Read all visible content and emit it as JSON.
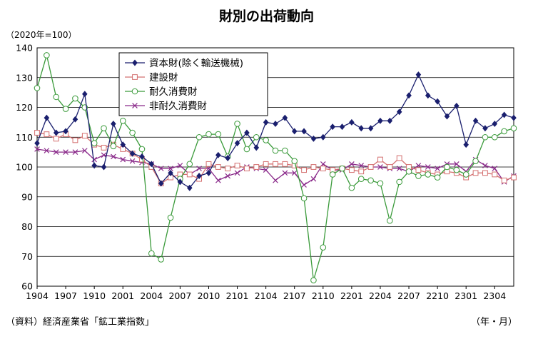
{
  "title": "財別の出荷動向",
  "unit_label": "（2020年=100）",
  "source": "（資料）経済産業省「鉱工業指数」",
  "x_unit": "（年・月）",
  "chart_data": {
    "type": "line",
    "title": "財別の出荷動向",
    "ylabel": "（2020年=100）",
    "xlabel": "（年・月）",
    "ylim": [
      60,
      140
    ],
    "yticks": [
      60,
      70,
      80,
      90,
      100,
      110,
      120,
      130,
      140
    ],
    "xticks": [
      "1904",
      "1907",
      "1910",
      "2001",
      "2004",
      "2007",
      "2010",
      "2101",
      "2104",
      "2107",
      "2110",
      "2201",
      "2204",
      "2207",
      "2210",
      "2301",
      "2304"
    ],
    "grid": "horizontal",
    "legend_position": "top-left",
    "x": [
      "1904",
      "1905",
      "1906",
      "1907",
      "1908",
      "1909",
      "1910",
      "1911",
      "1912",
      "2001",
      "2002",
      "2003",
      "2004",
      "2005",
      "2006",
      "2007",
      "2008",
      "2009",
      "2010",
      "2011",
      "2012",
      "2101",
      "2102",
      "2103",
      "2104",
      "2105",
      "2106",
      "2107",
      "2108",
      "2109",
      "2110",
      "2111",
      "2112",
      "2201",
      "2202",
      "2203",
      "2204",
      "2205",
      "2206",
      "2207",
      "2208",
      "2209",
      "2210",
      "2211",
      "2212",
      "2301",
      "2302",
      "2303",
      "2304",
      "2305",
      "2306"
    ],
    "series": [
      {
        "name": "資本財(除く輸送機械)",
        "color": "#1a1f6e",
        "marker": "diamond",
        "values": [
          108,
          116.5,
          111.5,
          112,
          116,
          124.5,
          100.5,
          100,
          114.5,
          107.5,
          104.5,
          103.5,
          101,
          94.5,
          98,
          95,
          93,
          97,
          98,
          104,
          103,
          108,
          111.5,
          106.5,
          115,
          114.5,
          116.5,
          112,
          112,
          109.5,
          110,
          113.5,
          113.5,
          115,
          113,
          113,
          115.5,
          115.5,
          118.5,
          124,
          131,
          124,
          122,
          117,
          120.5,
          107.5,
          115.5,
          113,
          114.5,
          117.5,
          116.5
        ]
      },
      {
        "name": "建設財",
        "color": "#d47070",
        "marker": "square",
        "values": [
          111.5,
          111,
          109.5,
          111,
          109,
          110.5,
          107.5,
          106.5,
          107.5,
          106,
          104.5,
          102.5,
          100,
          94.5,
          96.5,
          97.5,
          97.5,
          96,
          101,
          100,
          99.5,
          100.5,
          99.5,
          100,
          101,
          101,
          101,
          100.5,
          99,
          100,
          99.5,
          99,
          99.5,
          99,
          98.5,
          100,
          102.5,
          100,
          103,
          100,
          99,
          98,
          97.5,
          98.5,
          98,
          96.5,
          98,
          98,
          97.5,
          95.5,
          96.5
        ]
      },
      {
        "name": "耐久消費財",
        "color": "#3a9a3a",
        "marker": "circle",
        "values": [
          126.5,
          137.5,
          123.5,
          119.5,
          123,
          120,
          108,
          113,
          107,
          115.5,
          111.5,
          106,
          71,
          69,
          83,
          96,
          101,
          110,
          111,
          111,
          103.5,
          114.5,
          106,
          110,
          109,
          105.5,
          105.5,
          102,
          89.5,
          62,
          73,
          97.5,
          99.5,
          93,
          96,
          95.5,
          94.5,
          82,
          95,
          98.5,
          97,
          97.5,
          96.5,
          100,
          99,
          97.5,
          102,
          110,
          110,
          112,
          113
        ]
      },
      {
        "name": "非耐久消費財",
        "color": "#8a2a8a",
        "marker": "x",
        "values": [
          106,
          105.5,
          105,
          105,
          105,
          105.5,
          102.5,
          104,
          103.5,
          102.5,
          102,
          101.5,
          101,
          99.5,
          99.5,
          100.5,
          97.5,
          99.5,
          99.5,
          95.5,
          97,
          98,
          100,
          99.5,
          99,
          95.5,
          98,
          98,
          94,
          96,
          101,
          99,
          99,
          101,
          100.5,
          100,
          100,
          99.5,
          99.5,
          98.5,
          100.5,
          100,
          99.5,
          101,
          101,
          98.5,
          102.5,
          100.5,
          99.5,
          95,
          97
        ]
      }
    ]
  }
}
